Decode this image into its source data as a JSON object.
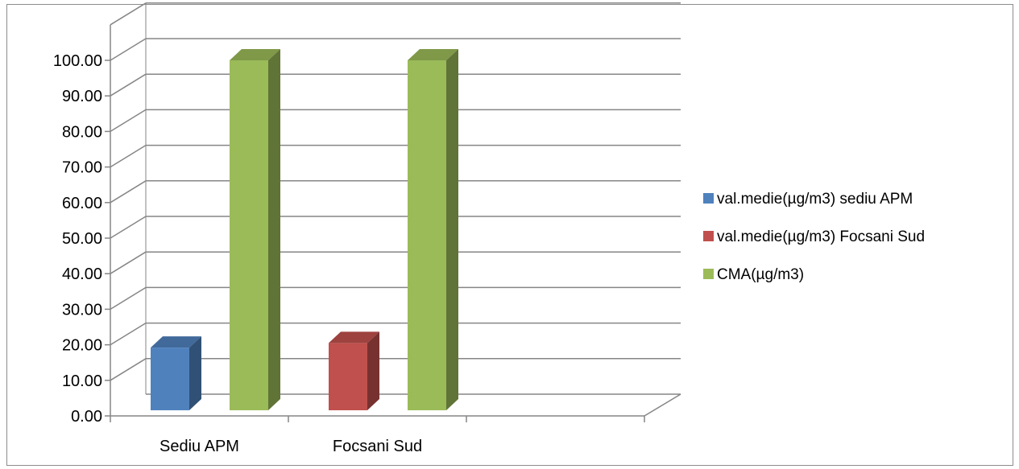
{
  "chart_data": {
    "type": "bar",
    "categories": [
      "Sediu APM",
      "Focsani Sud",
      ""
    ],
    "series": [
      {
        "name": "val.medie(µg/m3) sediu APM",
        "values": [
          19.2,
          null,
          null
        ],
        "color": "#4f81bd"
      },
      {
        "name": "val.medie(µg/m3) Focsani Sud",
        "values": [
          null,
          20.5,
          null
        ],
        "color": "#c0504d"
      },
      {
        "name": "CMA(µg/m3)",
        "values": [
          100,
          100,
          null
        ],
        "color": "#9bbb59"
      }
    ],
    "y_ticks": [
      "0.00",
      "10.00",
      "20.00",
      "30.00",
      "40.00",
      "50.00",
      "60.00",
      "70.00",
      "80.00",
      "90.00",
      "100.00"
    ],
    "ylim": [
      0,
      110
    ],
    "title": "",
    "xlabel": "",
    "ylabel": "",
    "grid": true,
    "legend_position": "right",
    "style": "3d-clustered-column"
  }
}
